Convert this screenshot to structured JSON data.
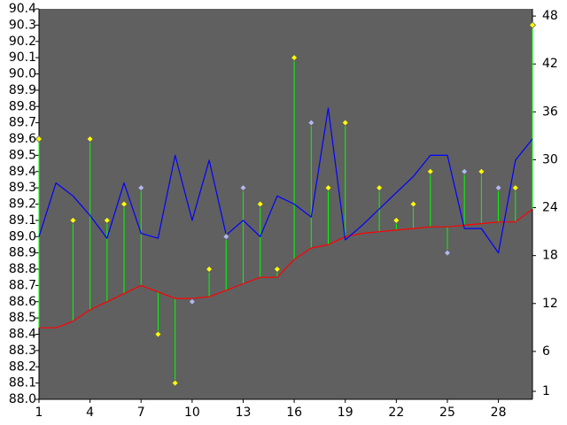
{
  "chart_data": {
    "type": "line",
    "title": "",
    "xlabel": "",
    "ylabel": "",
    "x": [
      1,
      2,
      3,
      4,
      5,
      6,
      7,
      8,
      9,
      10,
      11,
      12,
      13,
      14,
      15,
      16,
      17,
      18,
      19,
      20,
      21,
      22,
      23,
      24,
      25,
      26,
      27,
      28,
      29,
      30
    ],
    "x_ticks": [
      "1",
      "4",
      "7",
      "10",
      "13",
      "16",
      "19",
      "22",
      "25",
      "28"
    ],
    "x_tick_values": [
      1,
      4,
      7,
      10,
      13,
      16,
      19,
      22,
      25,
      28
    ],
    "xlim": [
      1,
      30
    ],
    "y_left": {
      "lim": [
        88.0,
        90.4
      ],
      "ticks": [
        "88.0",
        "88.1",
        "88.2",
        "88.3",
        "88.4",
        "88.5",
        "88.6",
        "88.7",
        "88.8",
        "88.9",
        "89.0",
        "89.1",
        "89.2",
        "89.3",
        "89.4",
        "89.5",
        "89.6",
        "89.7",
        "89.8",
        "89.9",
        "90.0",
        "90.1",
        "90.2",
        "90.3",
        "90.4"
      ]
    },
    "y_right": {
      "lim": [
        0,
        48.9
      ],
      "ticks": [
        "1",
        "6",
        "12",
        "18",
        "24",
        "30",
        "36",
        "42",
        "48"
      ],
      "tick_values": [
        1,
        6,
        12,
        18,
        24,
        30,
        36,
        42,
        48
      ]
    },
    "series": [
      {
        "axis": "left",
        "kind": "scatter",
        "marker": "diamond",
        "values": [
          89.6,
          null,
          89.1,
          89.6,
          89.1,
          89.2,
          89.3,
          88.4,
          88.1,
          88.6,
          88.8,
          89.0,
          89.3,
          89.2,
          88.8,
          90.1,
          89.7,
          89.3,
          89.7,
          null,
          89.3,
          89.1,
          89.2,
          89.4,
          88.9,
          89.4,
          89.4,
          89.3,
          89.3,
          90.3
        ],
        "colors": [
          "#ffff00",
          null,
          "#ffff00",
          "#ffff00",
          "#ffff00",
          "#ffff00",
          "#b0b8f0",
          "#ffff00",
          "#ffff00",
          "#b0b8f0",
          "#ffff00",
          "#b0b8f0",
          "#b0b8f0",
          "#ffff00",
          "#ffff00",
          "#ffff00",
          "#b0b8f0",
          "#ffff00",
          "#ffff00",
          null,
          "#ffff00",
          "#ffff00",
          "#ffff00",
          "#ffff00",
          "#b0b8f0",
          "#b0b8f0",
          "#ffff00",
          "#b0b8f0",
          "#ffff00",
          "#ffff00"
        ]
      },
      {
        "axis": "left",
        "kind": "line",
        "color": "#ff0000",
        "values": [
          88.44,
          88.44,
          88.48,
          88.55,
          88.6,
          88.65,
          88.7,
          88.66,
          88.62,
          88.62,
          88.63,
          88.67,
          88.71,
          88.75,
          88.75,
          88.86,
          88.93,
          88.95,
          89.0,
          89.02,
          89.03,
          89.04,
          89.05,
          89.06,
          89.06,
          89.07,
          89.08,
          89.09,
          89.09,
          89.17
        ]
      },
      {
        "axis": "left",
        "kind": "line",
        "color": "#0000ff",
        "values": [
          89.0,
          89.33,
          89.25,
          89.13,
          88.99,
          89.33,
          89.02,
          88.99,
          89.5,
          89.1,
          89.47,
          89.01,
          89.1,
          89.0,
          89.25,
          89.2,
          89.12,
          89.79,
          88.98,
          89.07,
          89.17,
          89.27,
          89.37,
          89.5,
          89.5,
          89.05,
          89.05,
          88.9,
          89.47,
          89.6
        ]
      }
    ],
    "vertical_lines": {
      "color": "#00ff00",
      "from_series": 0,
      "to_series": 1
    },
    "background": "#606060",
    "grid": false,
    "legend": "none"
  }
}
